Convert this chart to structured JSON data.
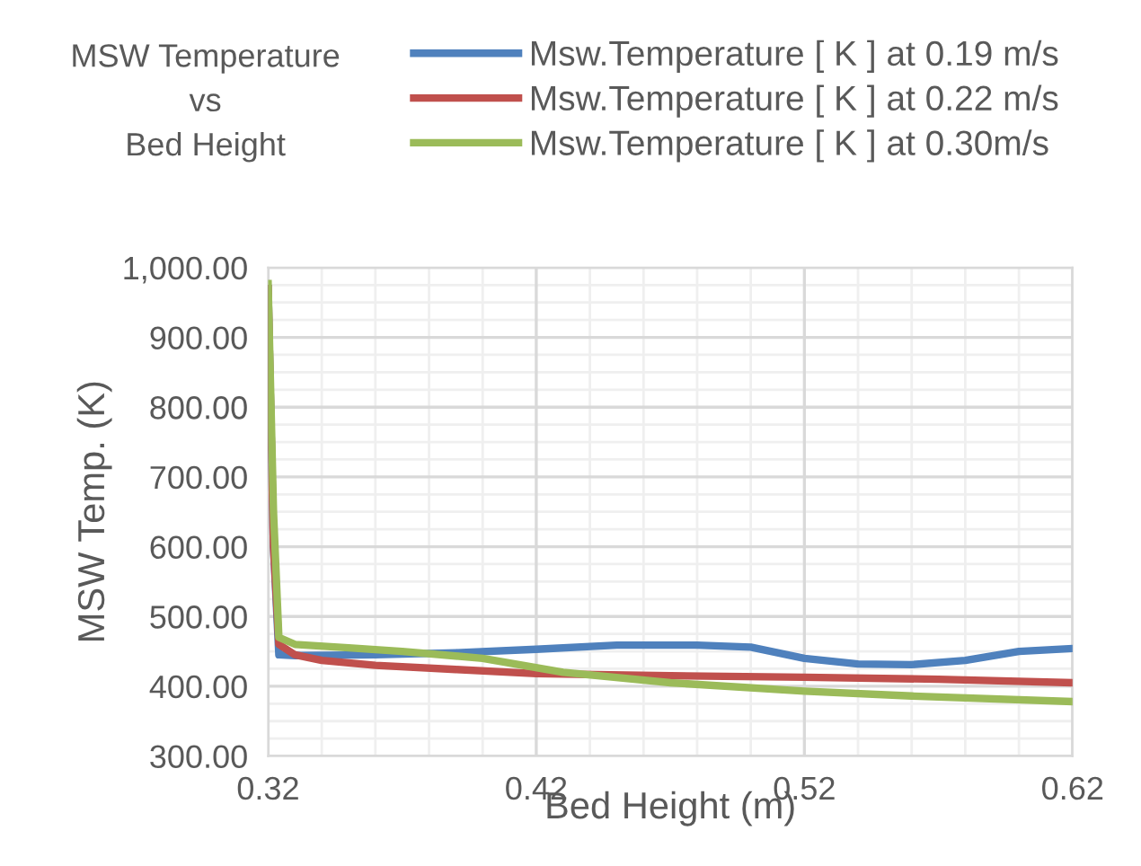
{
  "chart_data": {
    "type": "line",
    "title": "MSW Temperature\nvs\nBed Height",
    "xlabel": "Bed Height (m)",
    "ylabel": "MSW Temp. (K)",
    "xlim": [
      0.32,
      0.62
    ],
    "xticks": [
      0.32,
      0.42,
      0.52,
      0.62
    ],
    "ylim": [
      300,
      1000
    ],
    "yticks": [
      {
        "value": 300,
        "label": "300.00"
      },
      {
        "value": 400,
        "label": "400.00"
      },
      {
        "value": 500,
        "label": "500.00"
      },
      {
        "value": 600,
        "label": "600.00"
      },
      {
        "value": 700,
        "label": "700.00"
      },
      {
        "value": 800,
        "label": "800.00"
      },
      {
        "value": 900,
        "label": "900.00"
      },
      {
        "value": 1000,
        "label": "1,000.00"
      }
    ],
    "grid": true,
    "legend": "top",
    "line_style": "solid",
    "marker": "none",
    "series": [
      {
        "name": "Msw.Temperature [ K ] at 0.19 m/s",
        "color": "#4f81bd",
        "x": [
          0.32,
          0.322,
          0.324,
          0.33,
          0.36,
          0.39,
          0.42,
          0.45,
          0.48,
          0.5,
          0.52,
          0.54,
          0.56,
          0.58,
          0.6,
          0.62
        ],
        "values": [
          970,
          600,
          445,
          444,
          445,
          448,
          453,
          459,
          459,
          456,
          440,
          432,
          431,
          437,
          450,
          454
        ]
      },
      {
        "name": "Msw.Temperature [ K ] at 0.22 m/s",
        "color": "#c0504d",
        "x": [
          0.32,
          0.322,
          0.324,
          0.33,
          0.34,
          0.36,
          0.39,
          0.42,
          0.47,
          0.52,
          0.57,
          0.62
        ],
        "values": [
          970,
          600,
          460,
          445,
          437,
          430,
          424,
          418,
          415,
          413,
          410,
          405
        ]
      },
      {
        "name": "Msw.Temperature [ K ] at 0.30m/s",
        "color": "#9bbb59",
        "x": [
          0.32,
          0.322,
          0.324,
          0.33,
          0.35,
          0.37,
          0.4,
          0.43,
          0.47,
          0.52,
          0.56,
          0.62
        ],
        "values": [
          977,
          650,
          470,
          460,
          455,
          450,
          440,
          420,
          405,
          393,
          386,
          378
        ]
      }
    ]
  }
}
